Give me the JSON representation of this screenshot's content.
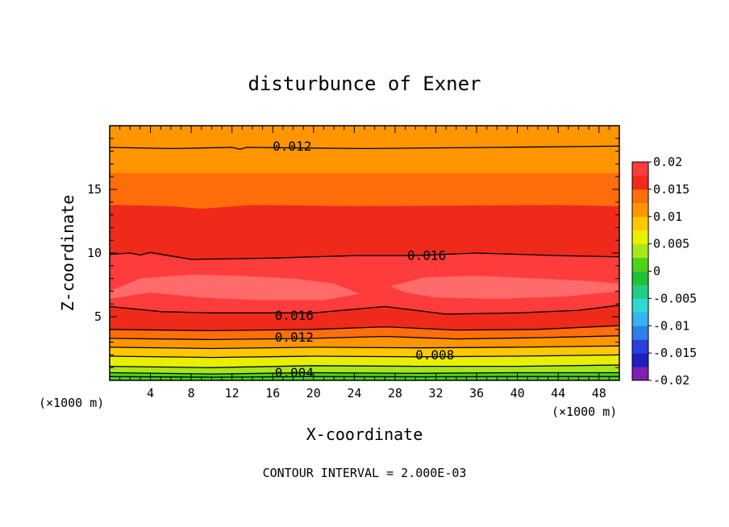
{
  "chart_data": {
    "type": "contour",
    "title": "disturbunce of Exner",
    "xlabel": "X-coordinate",
    "ylabel": "Z-coordinate",
    "x_unit": "(×1000 m)",
    "x_unit_right": "(×1000 m)",
    "xlim": [
      0,
      50
    ],
    "ylim": [
      0,
      20
    ],
    "x_ticks": [
      4,
      8,
      12,
      16,
      20,
      24,
      28,
      32,
      36,
      40,
      44,
      48
    ],
    "x_tick_labels": [
      "4",
      "8",
      "12",
      "16",
      "20",
      "24",
      "28",
      "32",
      "36",
      "40",
      "44",
      "48"
    ],
    "y_ticks": [
      5,
      10,
      15
    ],
    "y_tick_labels": [
      "5",
      "10",
      "15"
    ],
    "footer": "CONTOUR INTERVAL = 2.000E-03",
    "contour_interval": 0.002,
    "colorbar": {
      "levels": [
        -0.02,
        -0.0175,
        -0.015,
        -0.0125,
        -0.01,
        -0.0075,
        -0.005,
        -0.0025,
        0,
        0.0025,
        0.005,
        0.0075,
        0.01,
        0.0125,
        0.015,
        0.0175,
        0.02
      ],
      "colors": [
        "#7f1fb4",
        "#1f1fbf",
        "#2a3fdc",
        "#2f7fe8",
        "#34b4f0",
        "#2fd8d0",
        "#22cc88",
        "#1ec238",
        "#4fd21a",
        "#a8e61a",
        "#e8f000",
        "#ffc800",
        "#ff9600",
        "#ff6e0a",
        "#f02a1a",
        "#ff3c3c"
      ],
      "tick_values": [
        0.02,
        0.015,
        0.01,
        0.005,
        0,
        -0.005,
        -0.01,
        -0.015,
        -0.02
      ],
      "tick_labels": [
        "0.02",
        "0.015",
        "0.01",
        "0.005",
        "0",
        "-0.005",
        "-0.01",
        "-0.015",
        "-0.02"
      ]
    },
    "contour_labels": [
      {
        "text": "0.012",
        "x": 17.9,
        "z": 18.4
      },
      {
        "text": "0.016",
        "x": 31.1,
        "z": 9.8
      },
      {
        "text": "0.016",
        "x": 18.1,
        "z": 5.1
      },
      {
        "text": "0.012",
        "x": 18.1,
        "z": 3.4
      },
      {
        "text": "0.008",
        "x": 31.9,
        "z": 2.0
      },
      {
        "text": "0.004",
        "x": 18.1,
        "z": 0.6
      }
    ],
    "bands": [
      {
        "value_range": [
          0.0,
          0.0025
        ],
        "color": "#4fd21a",
        "bottom": [
          [
            0,
            0
          ],
          [
            50,
            0
          ]
        ],
        "top": [
          [
            0,
            0.6
          ],
          [
            10,
            0.5
          ],
          [
            20,
            0.6
          ],
          [
            30,
            0.55
          ],
          [
            40,
            0.6
          ],
          [
            50,
            0.6
          ]
        ]
      },
      {
        "value_range": [
          0.0025,
          0.005
        ],
        "color": "#a8e61a",
        "bottom": [
          [
            0,
            0.6
          ],
          [
            10,
            0.5
          ],
          [
            20,
            0.6
          ],
          [
            30,
            0.55
          ],
          [
            40,
            0.6
          ],
          [
            50,
            0.6
          ]
        ],
        "top": [
          [
            0,
            1.1
          ],
          [
            10,
            1.0
          ],
          [
            20,
            1.15
          ],
          [
            30,
            1.1
          ],
          [
            40,
            1.1
          ],
          [
            50,
            1.2
          ]
        ]
      },
      {
        "value_range": [
          0.005,
          0.0075
        ],
        "color": "#e8f000",
        "bottom": [
          [
            0,
            1.1
          ],
          [
            10,
            1.0
          ],
          [
            20,
            1.15
          ],
          [
            30,
            1.1
          ],
          [
            40,
            1.1
          ],
          [
            50,
            1.2
          ]
        ],
        "top": [
          [
            0,
            1.9
          ],
          [
            10,
            1.8
          ],
          [
            20,
            1.9
          ],
          [
            30,
            1.85
          ],
          [
            40,
            1.9
          ],
          [
            50,
            2.0
          ]
        ]
      },
      {
        "value_range": [
          0.0075,
          0.01
        ],
        "color": "#ffc800",
        "bottom": [
          [
            0,
            1.9
          ],
          [
            10,
            1.8
          ],
          [
            20,
            1.9
          ],
          [
            30,
            1.85
          ],
          [
            40,
            1.9
          ],
          [
            50,
            2.0
          ]
        ],
        "top": [
          [
            0,
            2.6
          ],
          [
            10,
            2.5
          ],
          [
            20,
            2.6
          ],
          [
            30,
            2.55
          ],
          [
            40,
            2.6
          ],
          [
            50,
            2.7
          ]
        ]
      },
      {
        "value_range": [
          0.01,
          0.0125
        ],
        "color": "#ff9600",
        "bottom": [
          [
            0,
            2.6
          ],
          [
            10,
            2.5
          ],
          [
            20,
            2.6
          ],
          [
            30,
            2.55
          ],
          [
            40,
            2.6
          ],
          [
            50,
            2.7
          ]
        ],
        "top": [
          [
            0,
            3.3
          ],
          [
            10,
            3.2
          ],
          [
            20,
            3.3
          ],
          [
            27,
            3.45
          ],
          [
            34,
            3.25
          ],
          [
            42,
            3.35
          ],
          [
            50,
            3.5
          ]
        ]
      },
      {
        "value_range": [
          0.0125,
          0.015
        ],
        "color": "#ff6e0a",
        "bottom": [
          [
            0,
            3.3
          ],
          [
            10,
            3.2
          ],
          [
            20,
            3.3
          ],
          [
            27,
            3.45
          ],
          [
            34,
            3.25
          ],
          [
            42,
            3.35
          ],
          [
            50,
            3.5
          ]
        ],
        "top": [
          [
            0,
            4.0
          ],
          [
            10,
            3.9
          ],
          [
            20,
            4.0
          ],
          [
            27,
            4.2
          ],
          [
            34,
            3.95
          ],
          [
            42,
            4.0
          ],
          [
            50,
            4.3
          ]
        ]
      },
      {
        "value_range": [
          0.015,
          0.0175
        ],
        "color": "#f02a1a",
        "bottom": [
          [
            0,
            4.0
          ],
          [
            10,
            3.9
          ],
          [
            20,
            4.0
          ],
          [
            27,
            4.2
          ],
          [
            34,
            3.95
          ],
          [
            42,
            4.0
          ],
          [
            50,
            4.3
          ]
        ],
        "top": [
          [
            0,
            5.8
          ],
          [
            5,
            5.4
          ],
          [
            10,
            5.3
          ],
          [
            20,
            5.3
          ],
          [
            27,
            5.8
          ],
          [
            33,
            5.2
          ],
          [
            40,
            5.3
          ],
          [
            46,
            5.5
          ],
          [
            50,
            5.9
          ]
        ]
      },
      {
        "value_range": [
          0.0175,
          0.02
        ],
        "color": "#ff3c3c",
        "bottom": [
          [
            0,
            5.8
          ],
          [
            5,
            5.4
          ],
          [
            10,
            5.3
          ],
          [
            20,
            5.3
          ],
          [
            27,
            5.8
          ],
          [
            33,
            5.2
          ],
          [
            40,
            5.3
          ],
          [
            46,
            5.5
          ],
          [
            50,
            5.9
          ]
        ],
        "top": [
          [
            0,
            9.9
          ],
          [
            3,
            10.0
          ],
          [
            8,
            9.5
          ],
          [
            16,
            9.6
          ],
          [
            24,
            9.8
          ],
          [
            30,
            9.8
          ],
          [
            36,
            10.0
          ],
          [
            44,
            9.8
          ],
          [
            50,
            9.7
          ]
        ]
      },
      {
        "value_range": [
          0.015,
          0.0175
        ],
        "color": "#f02a1a",
        "bottom": [
          [
            0,
            9.9
          ],
          [
            3,
            10.0
          ],
          [
            8,
            9.5
          ],
          [
            16,
            9.6
          ],
          [
            24,
            9.8
          ],
          [
            30,
            9.8
          ],
          [
            36,
            10.0
          ],
          [
            44,
            9.8
          ],
          [
            50,
            9.7
          ]
        ],
        "top": [
          [
            0,
            13.8
          ],
          [
            6,
            13.7
          ],
          [
            9,
            13.5
          ],
          [
            14,
            13.8
          ],
          [
            24,
            13.7
          ],
          [
            34,
            13.75
          ],
          [
            44,
            13.8
          ],
          [
            50,
            13.7
          ]
        ]
      },
      {
        "value_range": [
          0.0125,
          0.015
        ],
        "color": "#ff6e0a",
        "bottom": [
          [
            0,
            13.8
          ],
          [
            6,
            13.7
          ],
          [
            9,
            13.5
          ],
          [
            14,
            13.8
          ],
          [
            24,
            13.7
          ],
          [
            34,
            13.75
          ],
          [
            44,
            13.8
          ],
          [
            50,
            13.7
          ]
        ],
        "top": [
          [
            0,
            16.3
          ],
          [
            25,
            16.3
          ],
          [
            50,
            16.3
          ]
        ]
      },
      {
        "value_range": [
          0.01,
          0.0125
        ],
        "color": "#ff9600",
        "bottom": [
          [
            0,
            16.3
          ],
          [
            25,
            16.3
          ],
          [
            50,
            16.3
          ]
        ],
        "top": [
          [
            0,
            20
          ],
          [
            50,
            20
          ]
        ]
      }
    ],
    "blobs": [
      {
        "value_range": [
          0.02,
          0.0225
        ],
        "color": "#ff6a6a",
        "outline": [
          [
            0,
            7.0
          ],
          [
            3,
            8.0
          ],
          [
            8,
            8.3
          ],
          [
            13,
            8.2
          ],
          [
            18,
            8.0
          ],
          [
            22,
            7.6
          ],
          [
            24.5,
            6.8
          ],
          [
            21,
            6.3
          ],
          [
            15,
            6.3
          ],
          [
            9,
            6.5
          ],
          [
            4,
            6.9
          ],
          [
            0,
            6.4
          ]
        ]
      },
      {
        "value_range": [
          0.02,
          0.0225
        ],
        "color": "#ff6a6a",
        "outline": [
          [
            27.5,
            7.4
          ],
          [
            31,
            8.1
          ],
          [
            36,
            8.2
          ],
          [
            42,
            8.0
          ],
          [
            47,
            7.8
          ],
          [
            50,
            7.6
          ],
          [
            50,
            7.0
          ],
          [
            45,
            6.6
          ],
          [
            38,
            6.4
          ],
          [
            32,
            6.5
          ],
          [
            29,
            6.9
          ]
        ]
      }
    ],
    "contour_lines": [
      {
        "value": 0.002,
        "points": [
          [
            0,
            0.3
          ],
          [
            10,
            0.25
          ],
          [
            20,
            0.3
          ],
          [
            30,
            0.28
          ],
          [
            40,
            0.3
          ],
          [
            50,
            0.3
          ]
        ]
      },
      {
        "value": 0.004,
        "points": [
          [
            0,
            0.6
          ],
          [
            10,
            0.5
          ],
          [
            20,
            0.6
          ],
          [
            30,
            0.55
          ],
          [
            40,
            0.6
          ],
          [
            50,
            0.6
          ]
        ]
      },
      {
        "value": 0.006,
        "points": [
          [
            0,
            1.1
          ],
          [
            10,
            1.0
          ],
          [
            20,
            1.15
          ],
          [
            30,
            1.1
          ],
          [
            40,
            1.1
          ],
          [
            50,
            1.2
          ]
        ]
      },
      {
        "value": 0.008,
        "points": [
          [
            0,
            1.9
          ],
          [
            10,
            1.8
          ],
          [
            20,
            1.9
          ],
          [
            30,
            1.85
          ],
          [
            40,
            1.9
          ],
          [
            50,
            2.0
          ]
        ]
      },
      {
        "value": 0.01,
        "points": [
          [
            0,
            2.6
          ],
          [
            10,
            2.5
          ],
          [
            20,
            2.6
          ],
          [
            30,
            2.55
          ],
          [
            40,
            2.6
          ],
          [
            50,
            2.7
          ]
        ]
      },
      {
        "value": 0.012,
        "points": [
          [
            0,
            3.3
          ],
          [
            10,
            3.2
          ],
          [
            20,
            3.3
          ],
          [
            27,
            3.45
          ],
          [
            34,
            3.25
          ],
          [
            42,
            3.35
          ],
          [
            50,
            3.5
          ]
        ]
      },
      {
        "value": 0.014,
        "points": [
          [
            0,
            4.0
          ],
          [
            10,
            3.9
          ],
          [
            20,
            4.0
          ],
          [
            27,
            4.2
          ],
          [
            34,
            3.95
          ],
          [
            42,
            4.0
          ],
          [
            50,
            4.3
          ]
        ]
      },
      {
        "value": 0.016,
        "points": [
          [
            0,
            5.8
          ],
          [
            5,
            5.4
          ],
          [
            10,
            5.3
          ],
          [
            20,
            5.3
          ],
          [
            27,
            5.8
          ],
          [
            33,
            5.2
          ],
          [
            40,
            5.3
          ],
          [
            46,
            5.5
          ],
          [
            50,
            5.9
          ]
        ]
      },
      {
        "value": 0.016,
        "points": [
          [
            0,
            9.9
          ],
          [
            2,
            10.0
          ],
          [
            3,
            9.85
          ],
          [
            4,
            10.05
          ],
          [
            8,
            9.5
          ],
          [
            16,
            9.6
          ],
          [
            24,
            9.8
          ],
          [
            30,
            9.8
          ],
          [
            36,
            10.0
          ],
          [
            44,
            9.8
          ],
          [
            50,
            9.7
          ]
        ]
      },
      {
        "value": 0.012,
        "points": [
          [
            0,
            18.3
          ],
          [
            6,
            18.2
          ],
          [
            12,
            18.3
          ],
          [
            12.8,
            18.15
          ],
          [
            13.4,
            18.3
          ],
          [
            25,
            18.2
          ],
          [
            38,
            18.3
          ],
          [
            50,
            18.4
          ]
        ]
      }
    ]
  }
}
